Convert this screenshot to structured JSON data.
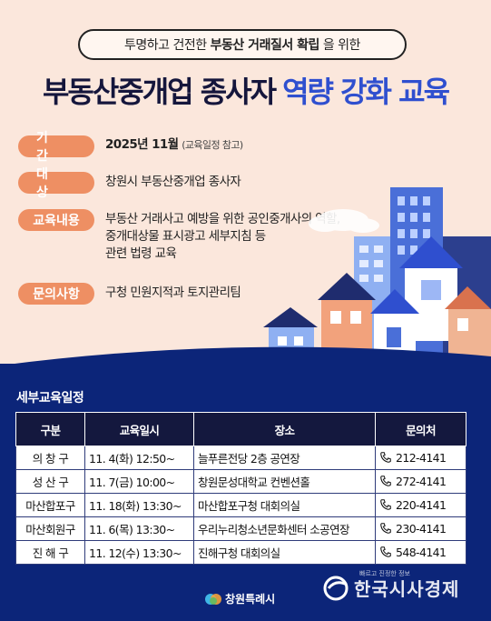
{
  "header": {
    "subtitle_pre": "투명하고 건전한",
    "subtitle_bold": "부동산 거래질서 확립",
    "subtitle_post": "을 위한",
    "title_dark": "부동산중개업 종사자",
    "title_blue": "역량 강화 교육"
  },
  "info": [
    {
      "label": "기간",
      "value": "2025년 11월",
      "note": "(교육일정 참고)"
    },
    {
      "label": "대상",
      "value": "창원시 부동산중개업 종사자"
    },
    {
      "label": "교육내용",
      "lines": [
        "부동산 거래사고 예방을 위한 공인중개사의 역할,",
        "중개대상물 표시광고 세부지침 등",
        "관련 법령 교육"
      ]
    },
    {
      "label": "문의사항",
      "value": "구청 민원지적과 토지관리팀"
    }
  ],
  "schedule": {
    "title": "세부교육일정",
    "headers": [
      "구분",
      "교육일시",
      "장소",
      "문의처"
    ],
    "rows": [
      [
        "의 창 구",
        "11. 4(화) 12:50~",
        "늘푸른전당 2층 공연장",
        "212-4141"
      ],
      [
        "성 산 구",
        "11. 7(금) 10:00~",
        "창원문성대학교 컨벤션홀",
        "272-4141"
      ],
      [
        "마산합포구",
        "11. 18(화) 13:30~",
        "마산합포구청 대회의실",
        "220-4141"
      ],
      [
        "마산회원구",
        "11. 6(목) 13:30~",
        "우리누리청소년문화센터 소공연장",
        "230-4141"
      ],
      [
        "진 해 구",
        "11. 12(수) 13:30~",
        "진해구청 대회의실",
        "548-4141"
      ]
    ]
  },
  "footer": {
    "logo_text": "창원특례시",
    "watermark_text": "한국시사경제",
    "watermark_small": "빠르고 진정한 정보"
  },
  "colors": {
    "background": "#fbe7dc",
    "accent_orange": "#ee8f63",
    "navy": "#0c2579",
    "title_blue": "#2f4fcf"
  }
}
